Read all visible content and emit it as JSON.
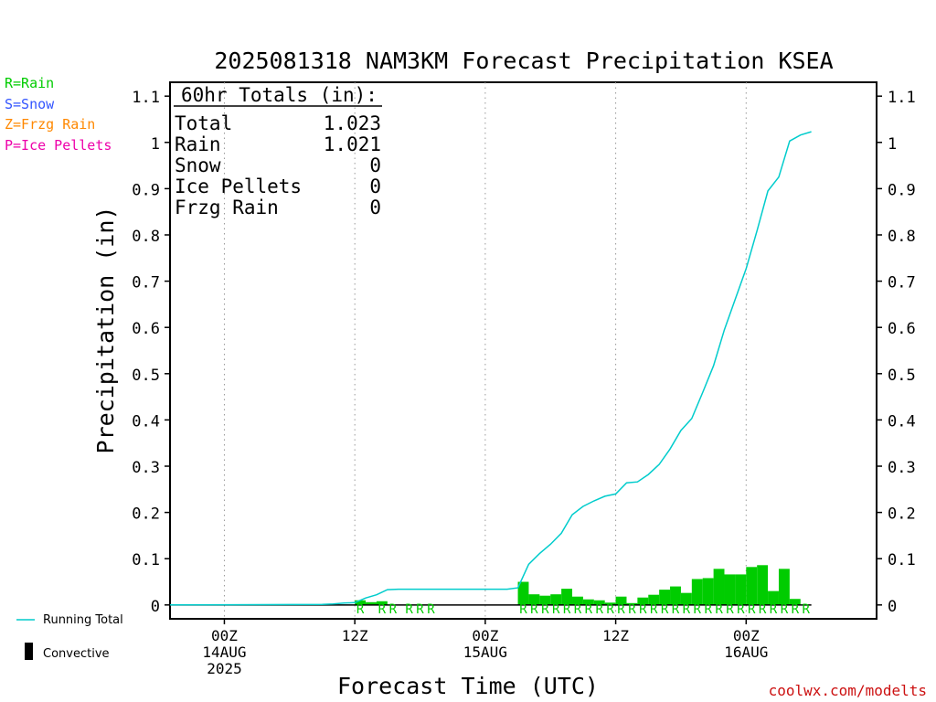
{
  "legend": {
    "items": [
      {
        "label": "R=Rain",
        "color": "#00cc00"
      },
      {
        "label": "S=Snow",
        "color": "#3355ff"
      },
      {
        "label": "Z=Frzg Rain",
        "color": "#ff8800"
      },
      {
        "label": "P=Ice Pellets",
        "color": "#ee00aa"
      }
    ],
    "running_total_label": "Running Total",
    "running_total_color": "#00cccc",
    "convective_label": "Convective",
    "convective_color": "#000000"
  },
  "totals": {
    "header": "60hr Totals (in):",
    "rows": [
      {
        "name": "Total",
        "value": "1.023"
      },
      {
        "name": "Rain",
        "value": "1.021"
      },
      {
        "name": "Snow",
        "value": "0"
      },
      {
        "name": "Ice Pellets",
        "value": "0"
      },
      {
        "name": "Frzg Rain",
        "value": "0"
      }
    ]
  },
  "watermark": "coolwx.com/modelts",
  "chart_data": {
    "type": "bar",
    "title": "2025081318 NAM3KM Forecast Precipitation KSEA",
    "xlabel": "Forecast Time (UTC)",
    "ylabel": "Precipitation (in)",
    "ylim": [
      -0.03,
      1.13
    ],
    "yticks": [
      "0",
      "0.1",
      "0.2",
      "0.3",
      "0.4",
      "0.5",
      "0.6",
      "0.7",
      "0.8",
      "0.9",
      "1",
      "1.1"
    ],
    "grid": "vertical dotted at major time ticks",
    "x_unit": "hour offset from 00Z 14AUG 2025",
    "xlim": [
      -5,
      60
    ],
    "xticks": [
      {
        "hour": 0,
        "lines": [
          "00Z",
          "14AUG",
          "2025"
        ]
      },
      {
        "hour": 12,
        "lines": [
          "12Z"
        ]
      },
      {
        "hour": 24,
        "lines": [
          "00Z",
          "15AUG"
        ]
      },
      {
        "hour": 36,
        "lines": [
          "12Z"
        ]
      },
      {
        "hour": 48,
        "lines": [
          "00Z",
          "16AUG"
        ]
      }
    ],
    "bar_color": "#00cc00",
    "hourly_rain": [
      {
        "hour": 13,
        "value": 0.01
      },
      {
        "hour": 14,
        "value": 0.006
      },
      {
        "hour": 15,
        "value": 0.008
      },
      {
        "hour": 28,
        "value": 0.05
      },
      {
        "hour": 29,
        "value": 0.023
      },
      {
        "hour": 30,
        "value": 0.02
      },
      {
        "hour": 31,
        "value": 0.023
      },
      {
        "hour": 32,
        "value": 0.035
      },
      {
        "hour": 33,
        "value": 0.018
      },
      {
        "hour": 34,
        "value": 0.012
      },
      {
        "hour": 35,
        "value": 0.01
      },
      {
        "hour": 36,
        "value": 0.005
      },
      {
        "hour": 37,
        "value": 0.018
      },
      {
        "hour": 38,
        "value": 0.004
      },
      {
        "hour": 39,
        "value": 0.016
      },
      {
        "hour": 40,
        "value": 0.022
      },
      {
        "hour": 41,
        "value": 0.033
      },
      {
        "hour": 42,
        "value": 0.04
      },
      {
        "hour": 43,
        "value": 0.026
      },
      {
        "hour": 44,
        "value": 0.056
      },
      {
        "hour": 45,
        "value": 0.058
      },
      {
        "hour": 46,
        "value": 0.078
      },
      {
        "hour": 47,
        "value": 0.066
      },
      {
        "hour": 48,
        "value": 0.066
      },
      {
        "hour": 49,
        "value": 0.082
      },
      {
        "hour": 50,
        "value": 0.086
      },
      {
        "hour": 51,
        "value": 0.03
      },
      {
        "hour": 52,
        "value": 0.078
      },
      {
        "hour": 53,
        "value": 0.013
      }
    ],
    "running_total": {
      "name": "Running Total",
      "color": "#00cccc",
      "points": [
        [
          -5,
          0
        ],
        [
          9,
          0.001
        ],
        [
          10,
          0.002
        ],
        [
          11,
          0.004
        ],
        [
          12,
          0.005
        ],
        [
          13,
          0.015
        ],
        [
          14,
          0.022
        ],
        [
          15,
          0.033
        ],
        [
          16,
          0.034
        ],
        [
          18,
          0.034
        ],
        [
          20,
          0.034
        ],
        [
          22,
          0.034
        ],
        [
          24,
          0.034
        ],
        [
          25,
          0.034
        ],
        [
          26,
          0.034
        ],
        [
          27,
          0.037
        ],
        [
          28,
          0.088
        ],
        [
          29,
          0.111
        ],
        [
          30,
          0.131
        ],
        [
          31,
          0.155
        ],
        [
          32,
          0.195
        ],
        [
          33,
          0.213
        ],
        [
          34,
          0.225
        ],
        [
          35,
          0.235
        ],
        [
          36,
          0.24
        ],
        [
          37,
          0.264
        ],
        [
          38,
          0.266
        ],
        [
          39,
          0.282
        ],
        [
          40,
          0.304
        ],
        [
          41,
          0.337
        ],
        [
          42,
          0.377
        ],
        [
          43,
          0.403
        ],
        [
          44,
          0.459
        ],
        [
          45,
          0.517
        ],
        [
          46,
          0.595
        ],
        [
          47,
          0.661
        ],
        [
          48,
          0.727
        ],
        [
          49,
          0.809
        ],
        [
          50,
          0.895
        ],
        [
          51,
          0.925
        ],
        [
          52,
          1.003
        ],
        [
          53,
          1.016
        ],
        [
          54,
          1.023
        ]
      ]
    },
    "ptype_markers": [
      {
        "hour": 12.5,
        "label": "R"
      },
      {
        "hour": 14.5,
        "label": "R"
      },
      {
        "hour": 15.5,
        "label": "R"
      },
      {
        "hour": 17.0,
        "label": "R"
      },
      {
        "hour": 18.0,
        "label": "R"
      },
      {
        "hour": 19.0,
        "label": "R"
      },
      {
        "hour": 27.5,
        "label": "R"
      },
      {
        "hour": 28.5,
        "label": "R"
      },
      {
        "hour": 29.5,
        "label": "R"
      },
      {
        "hour": 30.5,
        "label": "R"
      },
      {
        "hour": 31.5,
        "label": "R"
      },
      {
        "hour": 32.5,
        "label": "R"
      },
      {
        "hour": 33.5,
        "label": "R"
      },
      {
        "hour": 34.5,
        "label": "R"
      },
      {
        "hour": 35.5,
        "label": "R"
      },
      {
        "hour": 36.5,
        "label": "R"
      },
      {
        "hour": 37.5,
        "label": "R"
      },
      {
        "hour": 38.5,
        "label": "R"
      },
      {
        "hour": 39.5,
        "label": "R"
      },
      {
        "hour": 40.5,
        "label": "R"
      },
      {
        "hour": 41.5,
        "label": "R"
      },
      {
        "hour": 42.5,
        "label": "R"
      },
      {
        "hour": 43.5,
        "label": "R"
      },
      {
        "hour": 44.5,
        "label": "R"
      },
      {
        "hour": 45.5,
        "label": "R"
      },
      {
        "hour": 46.5,
        "label": "R"
      },
      {
        "hour": 47.5,
        "label": "R"
      },
      {
        "hour": 48.5,
        "label": "R"
      },
      {
        "hour": 49.5,
        "label": "R"
      },
      {
        "hour": 50.5,
        "label": "R"
      },
      {
        "hour": 51.5,
        "label": "R"
      },
      {
        "hour": 52.5,
        "label": "R"
      },
      {
        "hour": 53.5,
        "label": "R"
      }
    ]
  }
}
